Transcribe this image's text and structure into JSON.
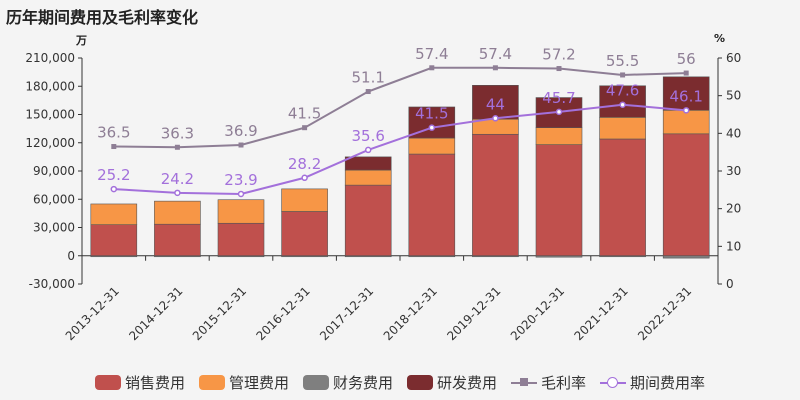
{
  "chart_data": {
    "type": "bar",
    "title": "历年期间费用及毛利率变化",
    "left_unit": "万",
    "right_unit": "%",
    "categories": [
      "2013-12-31",
      "2014-12-31",
      "2015-12-31",
      "2016-12-31",
      "2017-12-31",
      "2018-12-31",
      "2019-12-31",
      "2020-12-31",
      "2021-12-31",
      "2022-12-31"
    ],
    "y_left": {
      "min": -30000,
      "max": 210000,
      "ticks": [
        "-30,000",
        "0",
        "30,000",
        "60,000",
        "90,000",
        "120,000",
        "150,000",
        "180,000",
        "210,000"
      ]
    },
    "y_right": {
      "min": 0,
      "max": 60,
      "ticks": [
        "0",
        "10",
        "20",
        "30",
        "40",
        "50",
        "60"
      ]
    },
    "stacked_series": [
      {
        "name": "销售费用",
        "color": "#c0504d",
        "values": [
          33000,
          33500,
          34500,
          47000,
          75000,
          108000,
          129000,
          118000,
          124000,
          129500
        ]
      },
      {
        "name": "管理费用",
        "color": "#f79646",
        "values": [
          22000,
          24500,
          25000,
          24000,
          16000,
          17000,
          16000,
          18000,
          23000,
          25000
        ]
      },
      {
        "name": "财务费用",
        "color": "#7f7f7f",
        "values": [
          -800,
          -800,
          -800,
          -800,
          -800,
          -800,
          -1000,
          -1500,
          -1000,
          -2500
        ]
      },
      {
        "name": "研发费用",
        "color": "#7b2c2f",
        "values": [
          0,
          0,
          0,
          0,
          14000,
          33000,
          36000,
          32000,
          33500,
          35500
        ]
      }
    ],
    "line_series": [
      {
        "name": "毛利率",
        "color": "#8e7e95",
        "marker": "square",
        "values": [
          36.5,
          36.3,
          36.9,
          41.5,
          51.1,
          57.4,
          57.4,
          57.2,
          55.5,
          56
        ],
        "labels": [
          "36.5",
          "36.3",
          "36.9",
          "41.5",
          "51.1",
          "57.4",
          "57.4",
          "57.2",
          "55.5",
          "56"
        ]
      },
      {
        "name": "期间费用率",
        "color": "#a370db",
        "marker": "circle",
        "values": [
          25.2,
          24.2,
          23.9,
          28.2,
          35.6,
          41.5,
          44,
          45.7,
          47.6,
          46.1
        ],
        "labels": [
          "25.2",
          "24.2",
          "23.9",
          "28.2",
          "35.6",
          "41.5",
          "44",
          "45.7",
          "47.6",
          "46.1"
        ]
      }
    ]
  }
}
